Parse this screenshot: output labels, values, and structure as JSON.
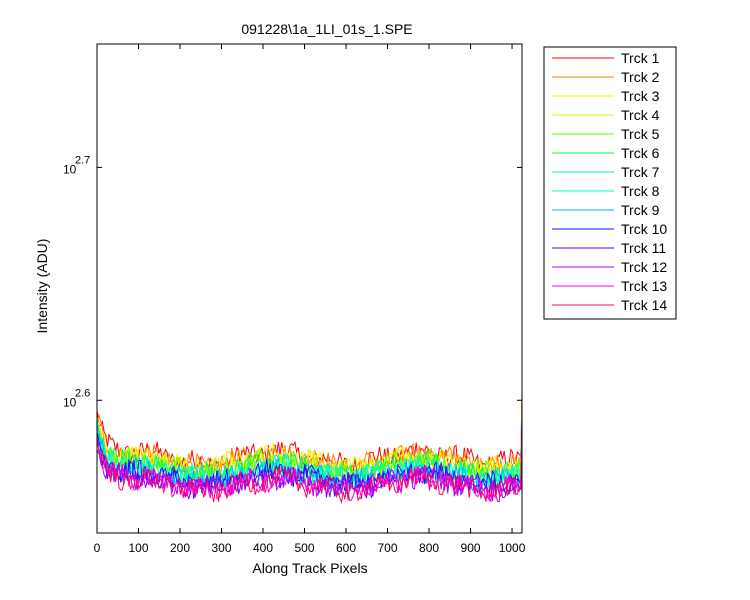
{
  "chart_data": {
    "type": "line",
    "title": "091228\\1a_1LI_01s_1.SPE",
    "xlabel": "Along Track Pixels",
    "ylabel": "Intensity (ADU)",
    "xlim": [
      0,
      1024
    ],
    "ylim": [
      2.543,
      2.753
    ],
    "yscale": "log10",
    "grid": false,
    "legend_position": "outside-right-top",
    "x_ticks": [
      0,
      100,
      200,
      300,
      400,
      500,
      600,
      700,
      800,
      900,
      1000
    ],
    "y_ticks": [
      {
        "exponent": 2.6,
        "base": "10",
        "sup": "2.6"
      },
      {
        "exponent": 2.7,
        "base": "10",
        "sup": "2.7"
      }
    ],
    "x": {
      "start": 1,
      "end": 1024,
      "step": 4
    },
    "series": [
      {
        "name": "Trck 1",
        "color": "#ff0000",
        "level": 2.5755,
        "spike_end": 2.603
      },
      {
        "name": "Trck 2",
        "color": "#ff7f00",
        "level": 2.5745,
        "spike_end": 2.599
      },
      {
        "name": "Trck 3",
        "color": "#ffee00",
        "level": 2.5735,
        "spike_end": 2.597
      },
      {
        "name": "Trck 4",
        "color": "#ccff00",
        "level": 2.5725,
        "spike_end": 2.596
      },
      {
        "name": "Trck 5",
        "color": "#66ff00",
        "level": 2.5715,
        "spike_end": 2.595
      },
      {
        "name": "Trck 6",
        "color": "#00ff44",
        "level": 2.5705,
        "spike_end": 2.595
      },
      {
        "name": "Trck 7",
        "color": "#00ff99",
        "level": 2.5695,
        "spike_end": 2.594
      },
      {
        "name": "Trck 8",
        "color": "#00ffdd",
        "level": 2.5685,
        "spike_end": 2.594
      },
      {
        "name": "Trck 9",
        "color": "#00b4ff",
        "level": 2.5675,
        "spike_end": 2.593
      },
      {
        "name": "Trck 10",
        "color": "#0019ff",
        "level": 2.5665,
        "spike_end": 2.592
      },
      {
        "name": "Trck 11",
        "color": "#5500ff",
        "level": 2.5655,
        "spike_end": 2.59
      },
      {
        "name": "Trck 12",
        "color": "#aa00ff",
        "level": 2.5645,
        "spike_end": 2.589
      },
      {
        "name": "Trck 13",
        "color": "#ff00dd",
        "level": 2.564,
        "spike_end": 2.588
      },
      {
        "name": "Trck 14",
        "color": "#ff0066",
        "level": 2.5635,
        "spike_end": 2.588
      }
    ]
  }
}
